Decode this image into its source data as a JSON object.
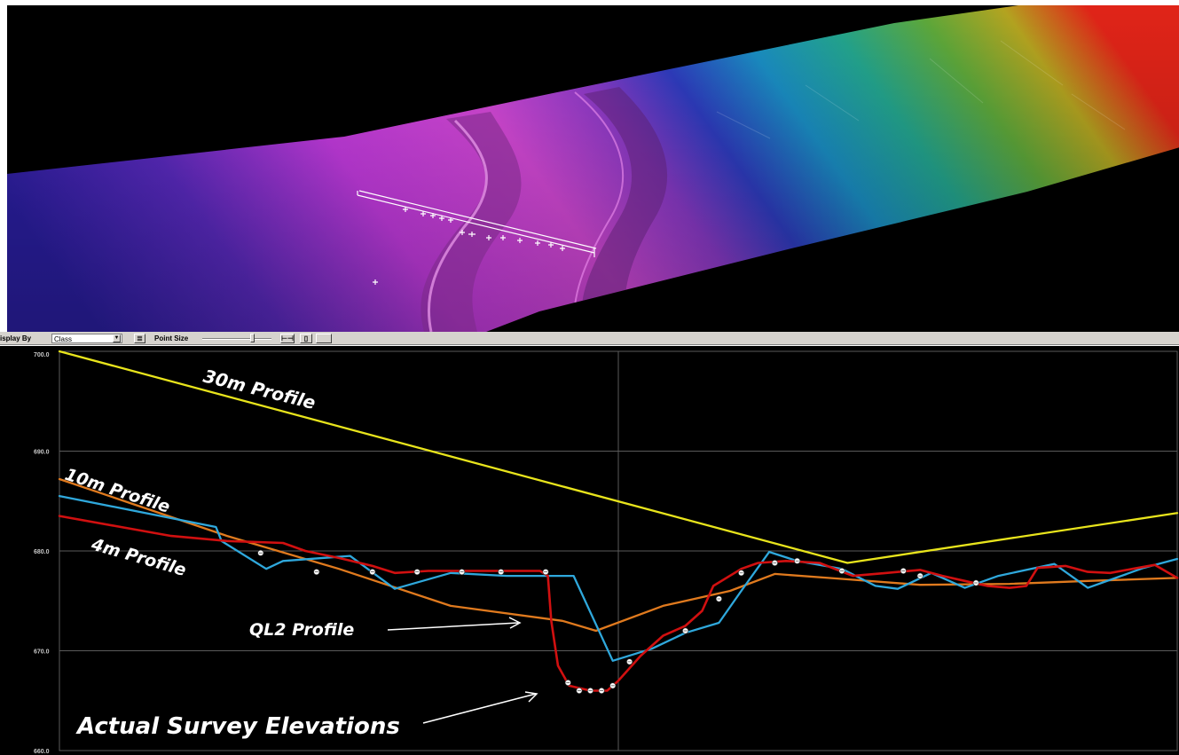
{
  "toolbar": {
    "display_by_label": "isplay By",
    "display_by_value": "Class",
    "point_size_label": "Point Size",
    "list_icon": "list-icon",
    "fit_icon": "fit-width-icon",
    "copy_icon": "copy-icon"
  },
  "colors": {
    "ql2_profile": "#d11010",
    "survey_blue": "#2fa8dc",
    "profile_10m": "#e07a1e",
    "profile_30m": "#e8e41c",
    "grid": "#5a5a5a"
  },
  "chart_data": {
    "type": "line",
    "ylim": [
      660.0,
      700.0
    ],
    "y_ticks": [
      "700.0",
      "690.0",
      "680.0",
      "670.0",
      "660.0"
    ],
    "grid": true,
    "x_domain": [
      0,
      100
    ],
    "series": [
      {
        "name": "30m Profile",
        "color": "#e8e41c",
        "points": [
          [
            0,
            700.0
          ],
          [
            70.5,
            678.8
          ],
          [
            100,
            683.8
          ]
        ]
      },
      {
        "name": "10m Profile",
        "color": "#e07a1e",
        "points": [
          [
            0,
            687.2
          ],
          [
            15,
            681.5
          ],
          [
            25,
            678.2
          ],
          [
            35,
            674.5
          ],
          [
            45,
            673.0
          ],
          [
            48,
            672.0
          ],
          [
            54,
            674.5
          ],
          [
            60,
            676.0
          ],
          [
            64,
            677.7
          ],
          [
            70,
            677.2
          ],
          [
            77,
            676.6
          ],
          [
            85,
            676.7
          ],
          [
            92,
            677.0
          ],
          [
            100,
            677.3
          ]
        ]
      },
      {
        "name": "4m Profile",
        "color": "#2fa8dc",
        "points": [
          [
            0,
            685.5
          ],
          [
            14,
            682.4
          ],
          [
            14.5,
            681.0
          ],
          [
            18.5,
            678.2
          ],
          [
            20,
            679.0
          ],
          [
            26,
            679.5
          ],
          [
            30,
            676.2
          ],
          [
            35,
            677.8
          ],
          [
            40,
            677.5
          ],
          [
            46,
            677.5
          ],
          [
            49.5,
            669.0
          ],
          [
            53,
            670.2
          ],
          [
            56,
            671.8
          ],
          [
            59,
            672.8
          ],
          [
            61,
            676.0
          ],
          [
            63.5,
            679.9
          ],
          [
            66,
            679.0
          ],
          [
            70,
            678.2
          ],
          [
            73,
            676.5
          ],
          [
            75,
            676.2
          ],
          [
            78,
            677.8
          ],
          [
            81,
            676.3
          ],
          [
            84,
            677.5
          ],
          [
            89,
            678.7
          ],
          [
            92,
            676.3
          ],
          [
            97,
            678.3
          ],
          [
            100,
            679.2
          ]
        ]
      },
      {
        "name": "QL2 Profile",
        "color": "#d11010",
        "points": [
          [
            0,
            683.5
          ],
          [
            5,
            682.5
          ],
          [
            10,
            681.5
          ],
          [
            15,
            681.0
          ],
          [
            20,
            680.8
          ],
          [
            22,
            680.0
          ],
          [
            25,
            679.3
          ],
          [
            28,
            678.5
          ],
          [
            30,
            677.8
          ],
          [
            33,
            678.0
          ],
          [
            35,
            678.0
          ],
          [
            40,
            678.0
          ],
          [
            43,
            678.0
          ],
          [
            43.7,
            677.5
          ],
          [
            44,
            673.0
          ],
          [
            44.6,
            668.5
          ],
          [
            45.6,
            666.5
          ],
          [
            47.5,
            666.0
          ],
          [
            49,
            666.0
          ],
          [
            50,
            667.0
          ],
          [
            52,
            669.5
          ],
          [
            54,
            671.5
          ],
          [
            56,
            672.5
          ],
          [
            57.5,
            674.0
          ],
          [
            58.5,
            676.5
          ],
          [
            61,
            678.2
          ],
          [
            62.5,
            678.8
          ],
          [
            65,
            679.0
          ],
          [
            68,
            678.8
          ],
          [
            71,
            677.5
          ],
          [
            74,
            677.8
          ],
          [
            77,
            678.1
          ],
          [
            79,
            677.5
          ],
          [
            81,
            677.0
          ],
          [
            83,
            676.5
          ],
          [
            85,
            676.3
          ],
          [
            86.5,
            676.5
          ],
          [
            87.5,
            678.3
          ],
          [
            90,
            678.5
          ],
          [
            92,
            677.9
          ],
          [
            94,
            677.8
          ],
          [
            96,
            678.2
          ],
          [
            98,
            678.6
          ],
          [
            100,
            677.3
          ]
        ]
      }
    ],
    "survey_points": [
      [
        18,
        679.8
      ],
      [
        23,
        677.9
      ],
      [
        28,
        677.9
      ],
      [
        32,
        677.9
      ],
      [
        36,
        677.9
      ],
      [
        39.5,
        677.9
      ],
      [
        43.5,
        677.9
      ],
      [
        45.5,
        666.8
      ],
      [
        46.5,
        666.0
      ],
      [
        47.5,
        666.0
      ],
      [
        48.5,
        666.0
      ],
      [
        49.5,
        666.5
      ],
      [
        51,
        668.9
      ],
      [
        56,
        672.0
      ],
      [
        59,
        675.2
      ],
      [
        61,
        677.8
      ],
      [
        64,
        678.8
      ],
      [
        66,
        679.0
      ],
      [
        70,
        678.0
      ],
      [
        75.5,
        678.0
      ],
      [
        77,
        677.5
      ],
      [
        82,
        676.8
      ]
    ],
    "annotations": [
      {
        "text": "30m Profile"
      },
      {
        "text": "10m Profile"
      },
      {
        "text": "4m Profile"
      },
      {
        "text": "QL2 Profile"
      },
      {
        "text": "Actual Survey Elevations"
      }
    ]
  }
}
